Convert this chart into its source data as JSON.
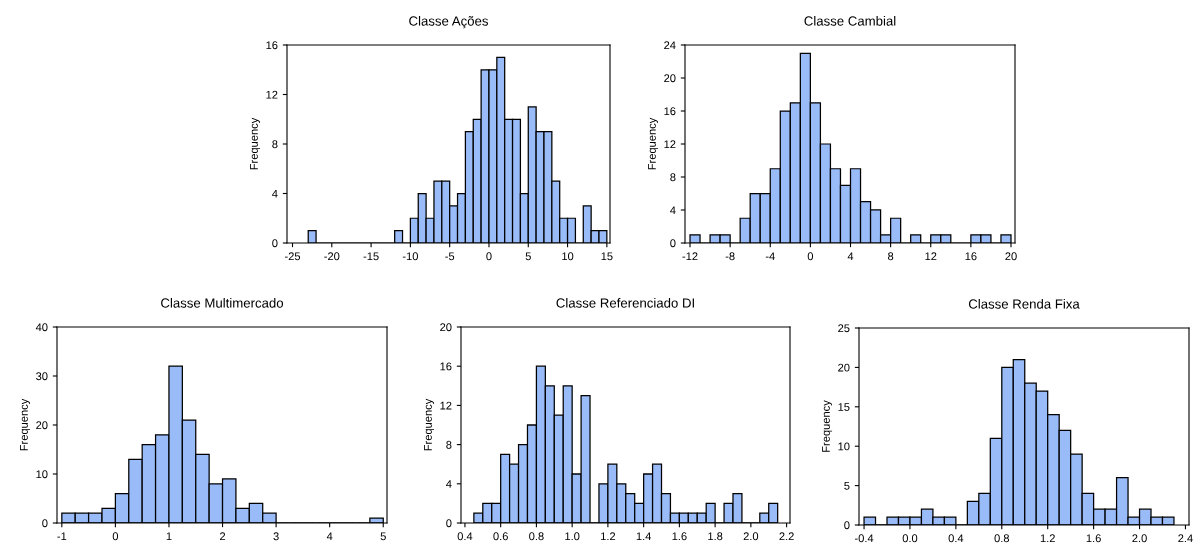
{
  "chart_data": [
    {
      "type": "histogram",
      "title": "Classe Ações",
      "ylabel": "Frequency",
      "color": "#99bbf8",
      "bins": [
        -23,
        -22,
        -21,
        -20,
        -19,
        -18,
        -17,
        -16,
        -15,
        -14,
        -13,
        -12,
        -11,
        -10,
        -9,
        -8,
        -7,
        -6,
        -5,
        -4,
        -3,
        -2,
        -1,
        0,
        1,
        2,
        3,
        4,
        5,
        6,
        7,
        8,
        9,
        10,
        11,
        12,
        13,
        14,
        15
      ],
      "values": [
        1,
        0,
        0,
        0,
        0,
        0,
        0,
        0,
        0,
        0,
        0,
        1,
        0,
        2,
        4,
        2,
        5,
        5,
        3,
        4,
        9,
        10,
        14,
        14,
        15,
        10,
        10,
        4,
        11,
        9,
        9,
        5,
        2,
        2,
        0,
        3,
        1,
        1
      ],
      "xlim": [
        -25.7,
        15.4
      ],
      "xticks": [
        -25,
        -20,
        -15,
        -10,
        -5,
        0,
        5,
        10,
        15
      ],
      "ylim": [
        0,
        16
      ],
      "yticks": [
        0,
        4,
        8,
        12,
        16
      ]
    },
    {
      "type": "histogram",
      "title": "Classe Cambial",
      "ylabel": "Frequency",
      "color": "#99bbf8",
      "bins": [
        -12,
        -11,
        -10,
        -9,
        -8,
        -7,
        -6,
        -5,
        -4,
        -3,
        -2,
        -1,
        0,
        1,
        2,
        3,
        4,
        5,
        6,
        7,
        8,
        9,
        10,
        11,
        12,
        13,
        14,
        15,
        16,
        17,
        18,
        19,
        20
      ],
      "values": [
        1,
        0,
        1,
        1,
        0,
        3,
        6,
        6,
        9,
        16,
        17,
        23,
        17,
        12,
        9,
        7,
        9,
        5,
        4,
        1,
        3,
        0,
        1,
        0,
        1,
        1,
        0,
        0,
        1,
        1,
        0,
        1
      ],
      "xlim": [
        -12.5,
        20.4
      ],
      "xticks": [
        -12,
        -8,
        -4,
        0,
        4,
        8,
        12,
        16,
        20
      ],
      "ylim": [
        0,
        24
      ],
      "yticks": [
        0,
        4,
        8,
        12,
        16,
        20,
        24
      ]
    },
    {
      "type": "histogram",
      "title": "Classe Multimercado",
      "ylabel": "Frequency",
      "color": "#99bbf8",
      "bins": [
        -1,
        -0.75,
        -0.5,
        -0.25,
        0,
        0.25,
        0.5,
        0.75,
        1,
        1.25,
        1.5,
        1.75,
        2,
        2.25,
        2.5,
        2.75,
        3,
        3.25,
        3.5,
        3.75,
        4,
        4.25,
        4.5,
        4.75,
        5
      ],
      "values": [
        2,
        2,
        2,
        3,
        6,
        13,
        16,
        18,
        32,
        21,
        14,
        8,
        9,
        3,
        4,
        2,
        0,
        0,
        0,
        0,
        0,
        0,
        0,
        1
      ],
      "xlim": [
        -1.09,
        5.07
      ],
      "xticks": [
        -1,
        0,
        1,
        2,
        3,
        4,
        5
      ],
      "ylim": [
        0,
        40
      ],
      "yticks": [
        0,
        10,
        20,
        30,
        40
      ]
    },
    {
      "type": "histogram",
      "title": "Classe Referenciado DI",
      "ylabel": "Frequency",
      "color": "#99bbf8",
      "bins": [
        0.45,
        0.5,
        0.55,
        0.6,
        0.65,
        0.7,
        0.75,
        0.8,
        0.85,
        0.9,
        0.95,
        1.0,
        1.05,
        1.1,
        1.15,
        1.2,
        1.25,
        1.3,
        1.35,
        1.4,
        1.45,
        1.5,
        1.55,
        1.6,
        1.65,
        1.7,
        1.75,
        1.8,
        1.85,
        1.9,
        1.95,
        2.0,
        2.05,
        2.1,
        2.15
      ],
      "values": [
        1,
        2,
        2,
        7,
        6,
        8,
        10,
        16,
        14,
        11,
        14,
        5,
        13,
        0,
        4,
        6,
        4,
        3,
        2,
        5,
        6,
        3,
        1,
        1,
        1,
        1,
        2,
        0,
        2,
        3,
        0,
        0,
        1,
        2
      ],
      "xlim": [
        0.378,
        2.219
      ],
      "xticks": [
        0.4,
        0.6,
        0.8,
        {
          "value": 1,
          "label": "1.0"
        },
        1.2,
        1.4,
        1.6,
        1.8,
        {
          "value": 2,
          "label": "2.0"
        },
        2.2
      ],
      "ylim": [
        0,
        20
      ],
      "yticks": [
        0,
        4,
        8,
        12,
        16,
        20
      ]
    },
    {
      "type": "histogram",
      "title": "Classe Renda Fixa",
      "ylabel": "Frequency",
      "color": "#99bbf8",
      "bins": [
        -0.4,
        -0.3,
        -0.2,
        -0.1,
        0,
        0.1,
        0.2,
        0.3,
        0.4,
        0.5,
        0.6,
        0.7,
        0.8,
        0.9,
        1.0,
        1.1,
        1.2,
        1.3,
        1.4,
        1.5,
        1.6,
        1.7,
        1.8,
        1.9,
        2.0,
        2.1,
        2.2,
        2.3
      ],
      "values": [
        1,
        0,
        1,
        1,
        1,
        2,
        1,
        1,
        0,
        3,
        4,
        11,
        20,
        21,
        18,
        17,
        14,
        12,
        9,
        4,
        2,
        2,
        6,
        1,
        2,
        1,
        1
      ],
      "xlim": [
        -0.444,
        2.431
      ],
      "xticks": [
        -0.4,
        {
          "value": 0,
          "label": "0.0"
        },
        0.4,
        0.8,
        1.2,
        1.6,
        {
          "value": 2,
          "label": "2.0"
        },
        2.4
      ],
      "ylim": [
        0,
        25
      ],
      "yticks": [
        0,
        5,
        10,
        15,
        20,
        25
      ]
    }
  ]
}
